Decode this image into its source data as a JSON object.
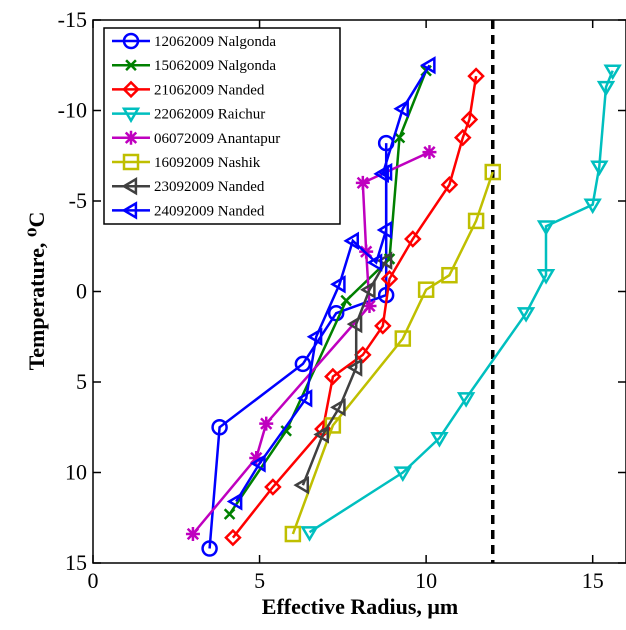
{
  "chart_data": {
    "type": "line",
    "title": "",
    "xlabel": "Effective Radius, μm",
    "ylabel": "Temperature, ⁰C",
    "xlim": [
      0,
      16
    ],
    "ylim": [
      15,
      -15
    ],
    "y_axis_inverted": true,
    "x_ticks": [
      "0",
      "5",
      "10",
      "15"
    ],
    "y_ticks": [
      "-15",
      "-10",
      "-5",
      "0",
      "5",
      "10",
      "15"
    ],
    "x_tick_values": [
      0,
      5,
      10,
      15
    ],
    "y_tick_values": [
      -15,
      -10,
      -5,
      0,
      5,
      10,
      15
    ],
    "grid": false,
    "legend_placement": "top-left",
    "reference_line": {
      "style": "dashed",
      "color": "#000000",
      "x": 12
    },
    "series": [
      {
        "name": "12062009 Nalgonda",
        "color": "#0000ff",
        "marker": "circle",
        "x": [
          3.5,
          3.8,
          6.3,
          7.3,
          8.8,
          8.8
        ],
        "y": [
          14.2,
          7.5,
          4.0,
          1.2,
          0.2,
          -8.2
        ]
      },
      {
        "name": "15062009 Nalgonda",
        "color": "#008000",
        "marker": "x",
        "x": [
          4.1,
          5.8,
          7.6,
          8.9,
          9.2,
          10.0
        ],
        "y": [
          12.3,
          7.7,
          0.5,
          -1.8,
          -8.5,
          -12.2
        ]
      },
      {
        "name": "21062009 Nanded",
        "color": "#ff0000",
        "marker": "diamond",
        "x": [
          4.2,
          5.4,
          6.9,
          7.2,
          8.1,
          8.7,
          8.9,
          9.6,
          10.7,
          11.1,
          11.3,
          11.5
        ],
        "y": [
          13.6,
          10.8,
          7.6,
          4.7,
          3.5,
          1.9,
          -0.7,
          -2.9,
          -5.9,
          -8.5,
          -9.5,
          -11.9
        ]
      },
      {
        "name": "22062009 Raichur",
        "color": "#00bfbf",
        "marker": "triangle-down",
        "x": [
          6.5,
          9.3,
          10.4,
          11.2,
          13.0,
          13.6,
          13.6,
          15.0,
          15.2,
          15.4,
          15.6
        ],
        "y": [
          13.3,
          10.0,
          8.1,
          5.9,
          1.2,
          -0.9,
          -3.6,
          -4.8,
          -6.9,
          -11.3,
          -12.2
        ]
      },
      {
        "name": "06072009 Anantapur",
        "color": "#bf00bf",
        "marker": "asterisk",
        "x": [
          3.0,
          4.9,
          5.2,
          8.3,
          8.2,
          8.1,
          10.1
        ],
        "y": [
          13.4,
          9.2,
          7.3,
          0.8,
          -2.2,
          -6.0,
          -7.7
        ]
      },
      {
        "name": "16092009 Nashik",
        "color": "#bfbf00",
        "marker": "square",
        "x": [
          6.0,
          7.2,
          9.3,
          10.0,
          10.7,
          11.5,
          12.0
        ],
        "y": [
          13.4,
          7.4,
          2.6,
          -0.1,
          -0.9,
          -3.9,
          -6.6
        ]
      },
      {
        "name": "23092009 Nanded",
        "color": "#404040",
        "marker": "triangle-left",
        "x": [
          6.3,
          6.9,
          7.4,
          7.9,
          7.9,
          8.3,
          8.8
        ],
        "y": [
          10.7,
          7.9,
          6.4,
          4.2,
          1.8,
          -0.1,
          -1.7
        ]
      },
      {
        "name": "24092009 Nanded",
        "color": "#0000ff",
        "marker": "triangle-left",
        "x": [
          4.3,
          5.0,
          6.4,
          6.7,
          7.4,
          7.8,
          8.5,
          8.8,
          8.8,
          8.7,
          9.3,
          10.1
        ],
        "y": [
          11.6,
          9.5,
          5.9,
          2.5,
          -0.4,
          -2.8,
          -1.6,
          -3.4,
          -6.6,
          -6.5,
          -10.1,
          -12.5
        ]
      }
    ]
  }
}
